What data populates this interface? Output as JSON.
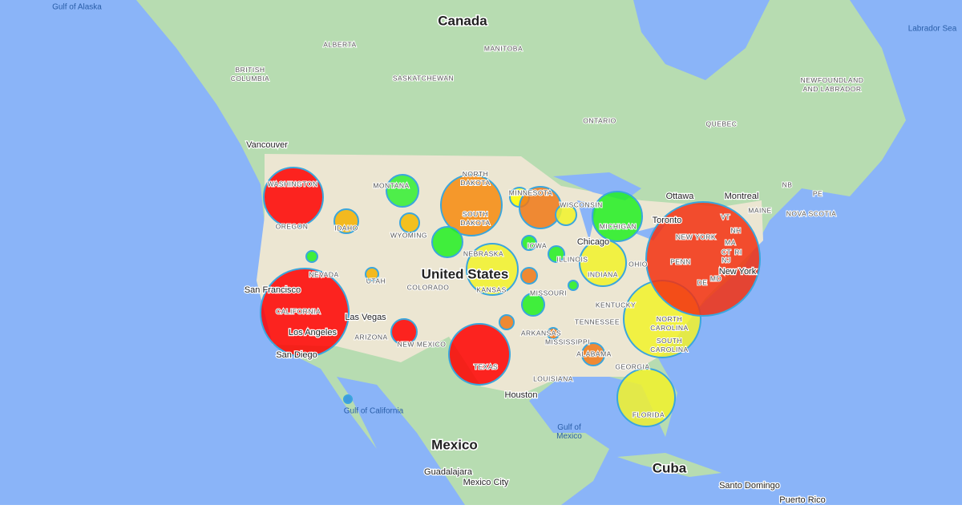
{
  "labels": {
    "countries": [
      "Canada",
      "United States",
      "Mexico",
      "Cuba"
    ],
    "water": [
      "Gulf of Alaska",
      "Labrador Sea",
      [
        "Gulf of",
        "Mexico"
      ],
      "Gulf of California"
    ],
    "regions": [
      [
        "BRITISH",
        "COLUMBIA"
      ],
      "ALBERTA",
      "SASKATCHEWAN",
      "MANITOBA",
      "ONTARIO",
      "QUEBEC",
      [
        "NEWFOUNDLAND",
        "AND LABRADOR"
      ],
      "NB",
      "PE",
      "NOVA SCOTIA",
      "MAINE",
      "WASHINGTON",
      "OREGON",
      "IDAHO",
      "MONTANA",
      "WYOMING",
      "NEVADA",
      "UTAH",
      "CALIFORNIA",
      "ARIZONA",
      "NEW MEXICO",
      "COLORADO",
      [
        "NORTH",
        "DAKOTA"
      ],
      [
        "SOUTH",
        "DAKOTA"
      ],
      "NEBRASKA",
      "KANSAS",
      "TEXAS",
      "IOWA",
      "MISSOURI",
      "ARKANSAS",
      "LOUISIANA",
      "MISSISSIPPI",
      "ALABAMA",
      "GEORGIA",
      "FLORIDA",
      "TENNESSEE",
      "KENTUCKY",
      "INDIANA",
      "ILLINOIS",
      "MICHIGAN",
      "OHIO",
      [
        "NORTH",
        "CAROLINA"
      ],
      [
        "SOUTH",
        "CAROLINA"
      ],
      "NEW YORK",
      "PENN",
      "VT",
      "NH",
      "MA",
      "CT",
      "RI",
      "NJ",
      "DE",
      "MD",
      "WISCONSIN",
      "MINNESOTA"
    ],
    "cities": [
      "Vancouver",
      "Ottawa",
      "Montreal",
      "Toronto",
      "Chicago",
      "San Francisco",
      "Las Vegas",
      "Los Angeles",
      "San Diego",
      "Houston",
      "New York",
      "Guadalajara",
      "Mexico City",
      "Santo Domingo",
      "Puerto Rico"
    ]
  }
}
